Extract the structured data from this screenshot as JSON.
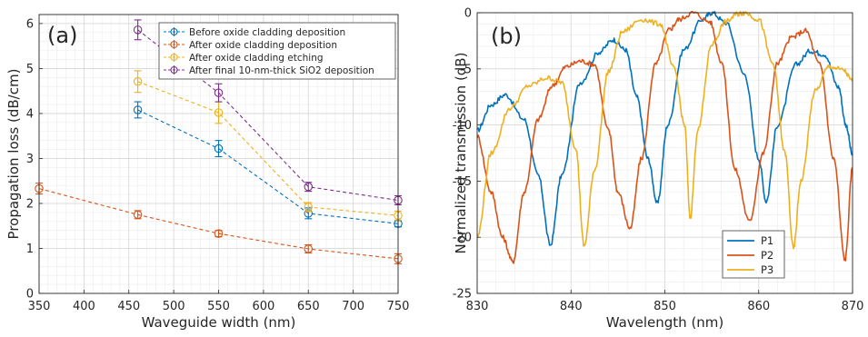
{
  "figure": {
    "panels": [
      "(a)",
      "(b)"
    ]
  },
  "chart_data": [
    {
      "type": "line",
      "panel_label": "(a)",
      "xlabel": "Waveguide width (nm)",
      "ylabel": "Propagation loss (dB/cm)",
      "xlim": [
        350,
        750
      ],
      "ylim": [
        0,
        6.2
      ],
      "xticks": [
        350,
        400,
        450,
        500,
        550,
        600,
        650,
        700,
        750
      ],
      "yticks": [
        0,
        1,
        2,
        3,
        4,
        5,
        6
      ],
      "grid": true,
      "minor_grid": true,
      "legend_position": "top-right",
      "line_style": "dashed",
      "marker": "circle",
      "series": [
        {
          "name": "Before oxide cladding deposition",
          "color": "#0072BD",
          "x": [
            460,
            550,
            650,
            750
          ],
          "y": [
            4.08,
            3.22,
            1.78,
            1.55
          ],
          "err": [
            0.18,
            0.18,
            0.12,
            0.07
          ]
        },
        {
          "name": "After oxide cladding deposition",
          "color": "#D95319",
          "x": [
            350,
            460,
            550,
            650,
            750
          ],
          "y": [
            2.33,
            1.75,
            1.33,
            0.99,
            0.77
          ],
          "err": [
            0.12,
            0.09,
            0.07,
            0.09,
            0.11
          ]
        },
        {
          "name": "After oxide cladding etching",
          "color": "#EDB120",
          "x": [
            460,
            550,
            650,
            750
          ],
          "y": [
            4.71,
            4.02,
            1.92,
            1.73
          ],
          "err": [
            0.24,
            0.24,
            0.1,
            0.1
          ]
        },
        {
          "name": "After final 10-nm-thick SiO2 deposition",
          "color": "#7E2F8E",
          "x": [
            460,
            550,
            650,
            750
          ],
          "y": [
            5.86,
            4.46,
            2.37,
            2.07
          ],
          "err": [
            0.22,
            0.2,
            0.1,
            0.1
          ]
        }
      ]
    },
    {
      "type": "line",
      "panel_label": "(b)",
      "xlabel": "Wavelength (nm)",
      "ylabel": "Normalized transmission (dB)",
      "xlim": [
        830,
        870
      ],
      "ylim": [
        -25,
        0
      ],
      "xticks": [
        830,
        840,
        850,
        860,
        870
      ],
      "yticks": [
        -25,
        -20,
        -15,
        -10,
        -5,
        0
      ],
      "grid": true,
      "minor_grid": true,
      "legend_position": "bottom-right",
      "series": [
        {
          "name": "P1",
          "color": "#0072BD",
          "x": [
            830,
            831.5,
            833,
            835,
            836.5,
            837.8,
            839,
            841,
            843,
            844.5,
            845.8,
            847,
            848.2,
            849.2,
            850.3,
            852,
            854,
            855,
            856.5,
            858.5,
            860,
            860.8,
            862,
            864,
            865.5,
            867,
            868.5,
            869.3,
            870
          ],
          "y": [
            -10.5,
            -8.2,
            -7.3,
            -9.5,
            -14.5,
            -20.7,
            -14.5,
            -6.2,
            -3.5,
            -2.4,
            -3.3,
            -7.5,
            -13,
            -17,
            -10,
            -3.3,
            -0.6,
            0,
            -0.9,
            -5.5,
            -13,
            -16.8,
            -10,
            -4.6,
            -3.4,
            -3.7,
            -6.6,
            -10,
            -12.7
          ]
        },
        {
          "name": "P2",
          "color": "#D95319",
          "x": [
            830,
            831.5,
            832.7,
            833.8,
            835,
            836.5,
            838,
            839.5,
            841,
            842.5,
            844,
            845,
            846.3,
            847.5,
            849,
            850.5,
            851.5,
            853,
            854.8,
            856,
            857.5,
            859,
            860.5,
            862,
            863.5,
            865,
            866.5,
            868,
            869.2,
            870
          ],
          "y": [
            -11,
            -16,
            -20,
            -22.2,
            -16,
            -9.5,
            -6.5,
            -4.8,
            -4.3,
            -4.6,
            -10.5,
            -16,
            -19.2,
            -13,
            -4.6,
            -1.5,
            -0.6,
            0,
            -0.8,
            -4.3,
            -14,
            -18.6,
            -12.5,
            -4.5,
            -2.2,
            -1.6,
            -4.6,
            -13,
            -22,
            -13.8
          ]
        },
        {
          "name": "P3",
          "color": "#EDB120",
          "x": [
            830,
            831.5,
            833.5,
            835.5,
            837.5,
            839,
            840.5,
            841.4,
            842.5,
            844,
            845.5,
            847.5,
            849.5,
            851,
            852.1,
            852.7,
            853.5,
            855,
            856.5,
            857.8,
            858.5,
            860,
            861.5,
            862.8,
            863.7,
            864.5,
            866,
            867.5,
            869,
            870
          ],
          "y": [
            -20,
            -12.5,
            -8.5,
            -6.5,
            -5.8,
            -6.2,
            -12,
            -20.8,
            -14,
            -5.2,
            -1.7,
            -0.6,
            -1,
            -5,
            -10,
            -18.2,
            -10.5,
            -2.8,
            -0.8,
            -0.1,
            0,
            -0.6,
            -4.5,
            -12.5,
            -21,
            -15,
            -7,
            -4.8,
            -5.1,
            -6.1
          ]
        }
      ]
    }
  ]
}
